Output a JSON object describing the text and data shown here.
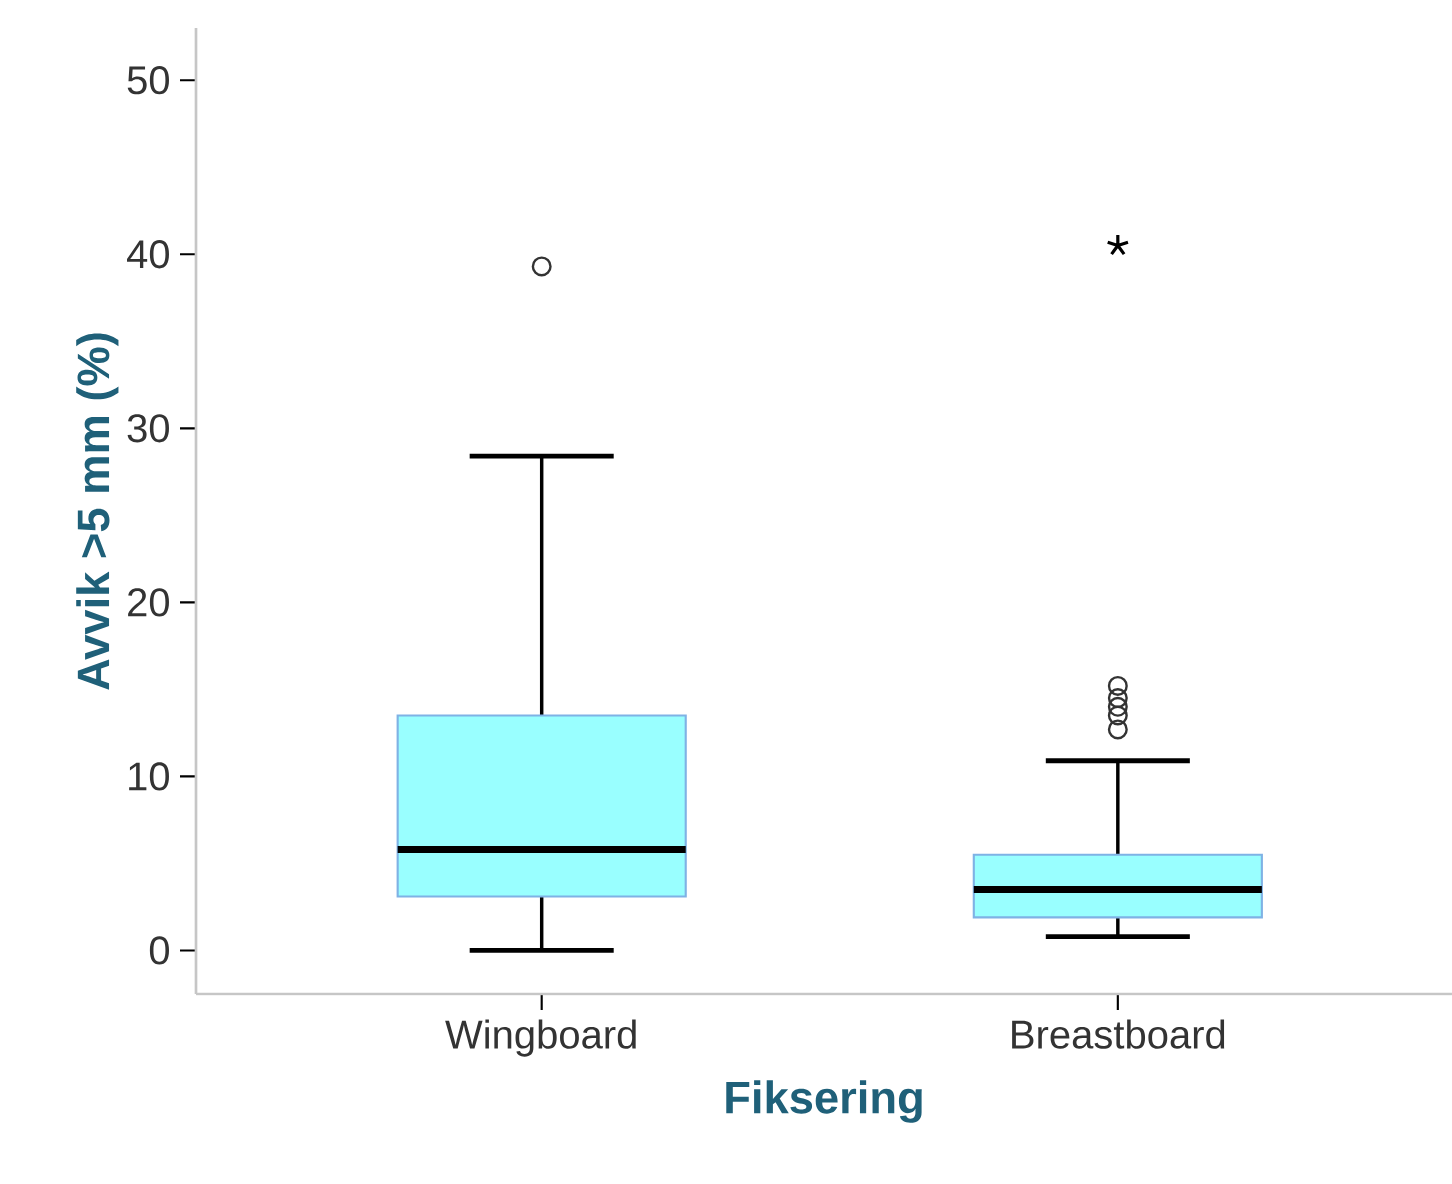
{
  "chart_data": {
    "type": "box",
    "xlabel": "Fiksering",
    "ylabel": "Avvik >5 mm (%)",
    "categories": [
      "Wingboard",
      "Breastboard"
    ],
    "series": [
      {
        "color": "#99ffff",
        "boxes": [
          {
            "low": 0,
            "q1": 3.1,
            "median": 5.8,
            "q3": 13.5,
            "high": 28.4,
            "outliers": [
              39.3
            ]
          },
          {
            "low": 0.8,
            "q1": 1.9,
            "median": 3.5,
            "q3": 5.5,
            "high": 10.9,
            "outliers": [
              12.7,
              13.5,
              14.0,
              14.5,
              15.2,
              40.5
            ]
          }
        ]
      }
    ],
    "ylim": [
      -2.5,
      53
    ],
    "yticks": [
      0,
      10,
      20,
      30,
      40,
      50
    ]
  }
}
